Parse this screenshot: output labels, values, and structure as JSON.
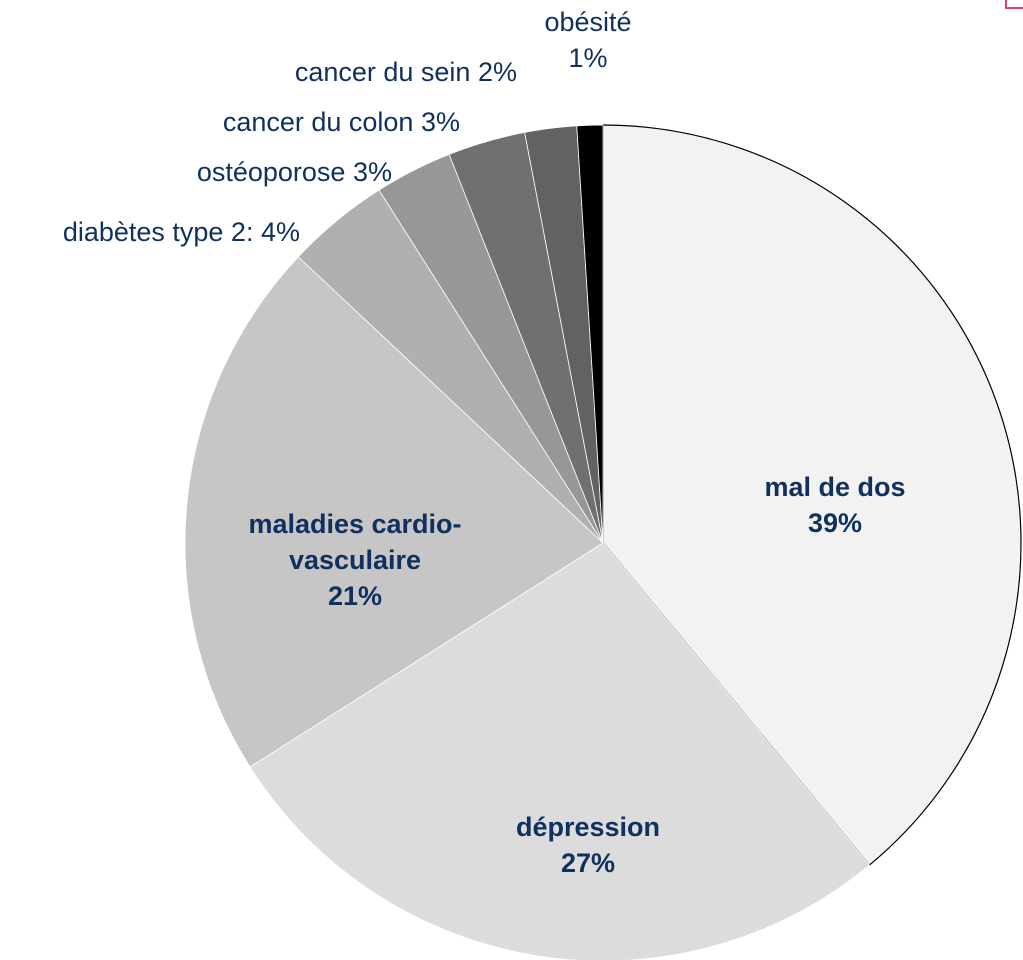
{
  "chart_data": {
    "type": "pie",
    "categories": [
      "mal de dos",
      "dépression",
      "maladies cardio-vasculaire",
      "diabètes type 2:",
      "ostéoporose",
      "cancer du colon",
      "cancer du sein",
      "obésité"
    ],
    "values": [
      39,
      27,
      21,
      4,
      3,
      3,
      2,
      1
    ],
    "value_labels": [
      "39%",
      "27%",
      "21%",
      "4%",
      "3%",
      "3%",
      "2%",
      "1%"
    ],
    "colors": [
      "#f2f2f2",
      "#dcdcdc",
      "#c6c6c6",
      "#b0b0b0",
      "#979797",
      "#707070",
      "#626262",
      "#000000"
    ]
  }
}
